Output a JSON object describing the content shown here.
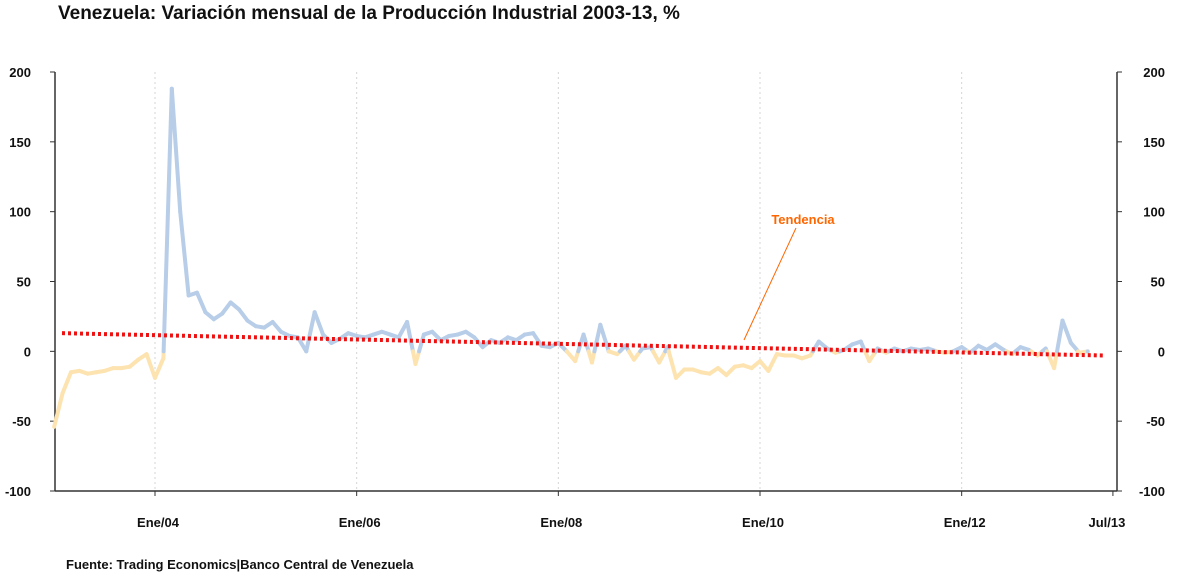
{
  "title": "Venezuela: Variación mensual de la Producción Industrial 2003-13, %",
  "source": "Fuente:  Trading Economics|Banco Central de Venezuela",
  "chart_data": {
    "type": "line",
    "title": "Venezuela: Variación mensual de la Producción Industrial 2003-13, %",
    "xlabel": "",
    "ylabel": "",
    "ylim": [
      -100,
      200
    ],
    "yticks": [
      "200",
      "150",
      "100",
      "50",
      "0",
      "-50",
      "-100"
    ],
    "xticks": [
      {
        "label": "Ene/04",
        "t": 12
      },
      {
        "label": "Ene/06",
        "t": 36
      },
      {
        "label": "Ene/08",
        "t": 60
      },
      {
        "label": "Ene/10",
        "t": 84
      },
      {
        "label": "Ene/12",
        "t": 108
      },
      {
        "label": "Jul/13",
        "t": 126
      }
    ],
    "grid": "vertical",
    "colors": {
      "positive": "#b7cde8",
      "negative": "#fde3b0",
      "trend": "#ee1111",
      "annotation": "#ff6600"
    },
    "annotation": {
      "text": "Tendencia"
    },
    "trend": {
      "start": 13,
      "end": -3
    },
    "series": [
      {
        "x_start": "2003-01",
        "values": [
          -54,
          -30,
          -15,
          -14,
          -16,
          -15,
          -14,
          -12,
          -12,
          -11,
          -6,
          -2,
          -19,
          -5,
          188,
          100,
          40,
          42,
          28,
          23,
          27,
          35,
          30,
          22,
          18,
          17,
          21,
          14,
          11,
          10,
          0,
          28,
          12,
          6,
          9,
          13,
          11,
          10,
          12,
          14,
          12,
          10,
          21,
          -9,
          12,
          14,
          8,
          11,
          12,
          14,
          10,
          3,
          8,
          6,
          10,
          8,
          12,
          13,
          4,
          3,
          6,
          0,
          -7,
          12,
          -8,
          19,
          0,
          -2,
          4,
          -6,
          2,
          3,
          -8,
          3,
          -19,
          -13,
          -13,
          -15,
          -16,
          -12,
          -17,
          -11,
          -10,
          -12,
          -7,
          -14,
          -2,
          -3,
          -3,
          -5,
          -3,
          7,
          2,
          -1,
          1,
          5,
          7,
          -7,
          2,
          -1,
          2,
          0,
          2,
          1,
          2,
          0,
          -1,
          0,
          3,
          -1,
          4,
          1,
          5,
          1,
          -2,
          3,
          1,
          -3,
          2,
          -12,
          22,
          6,
          -1,
          0
        ]
      }
    ]
  }
}
